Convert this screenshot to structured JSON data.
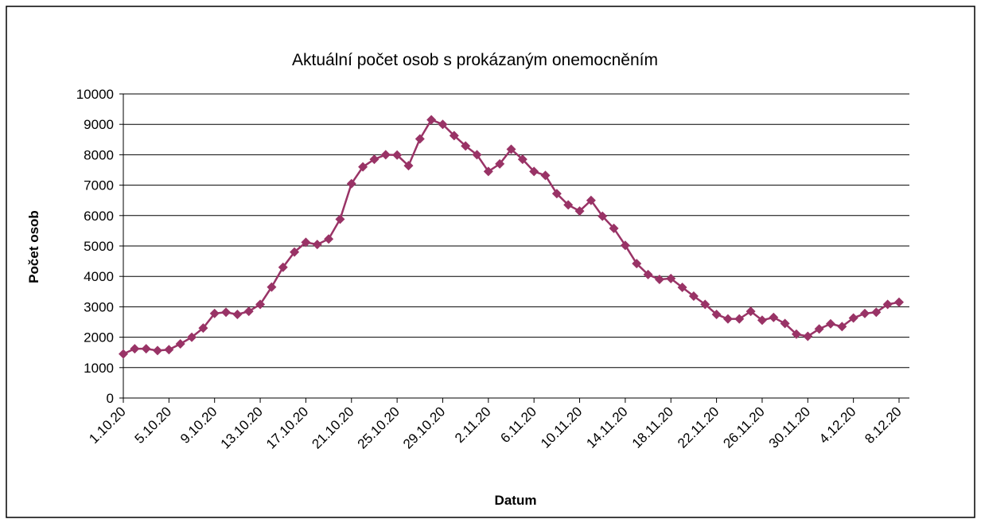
{
  "chart_data": {
    "type": "line",
    "title": "Aktuální počet osob s prokázaným onemocněním",
    "x_label": "Datum",
    "y_label": "Počet osob",
    "categories": [
      "1.10.20",
      null,
      null,
      null,
      "5.10.20",
      null,
      null,
      null,
      "9.10.20",
      null,
      null,
      null,
      "13.10.20",
      null,
      null,
      null,
      "17.10.20",
      null,
      null,
      null,
      "21.10.20",
      null,
      null,
      null,
      "25.10.20",
      null,
      null,
      null,
      "29.10.20",
      null,
      null,
      null,
      "2.11.20",
      null,
      null,
      null,
      "6.11.20",
      null,
      null,
      null,
      "10.11.20",
      null,
      null,
      null,
      "14.11.20",
      null,
      null,
      null,
      "18.11.20",
      null,
      null,
      null,
      "22.11.20",
      null,
      null,
      null,
      "26.11.20",
      null,
      null,
      null,
      "30.11.20",
      null,
      null,
      null,
      "4.12.20",
      null,
      null,
      null,
      "8.12.20"
    ],
    "series": [
      {
        "name": "Počet osob",
        "color": "#993366",
        "values": [
          1450,
          1620,
          1620,
          1560,
          1590,
          1780,
          2000,
          2300,
          2780,
          2820,
          2750,
          2850,
          3080,
          3650,
          4300,
          4800,
          5120,
          5050,
          5230,
          5880,
          7050,
          7600,
          7850,
          8000,
          7990,
          7640,
          8520,
          9150,
          9000,
          8630,
          8290,
          8000,
          7450,
          7700,
          8180,
          7850,
          7450,
          7320,
          6720,
          6350,
          6150,
          6500,
          5980,
          5580,
          5020,
          4420,
          4060,
          3900,
          3930,
          3640,
          3350,
          3080,
          2750,
          2600,
          2600,
          2850,
          2560,
          2650,
          2450,
          2100,
          2030,
          2270,
          2440,
          2350,
          2630,
          2780,
          2820,
          3080,
          3150
        ]
      }
    ],
    "ylim": [
      0,
      10000
    ],
    "yticks": [
      0,
      1000,
      2000,
      3000,
      4000,
      5000,
      6000,
      7000,
      8000,
      9000,
      10000
    ],
    "grid": true
  }
}
